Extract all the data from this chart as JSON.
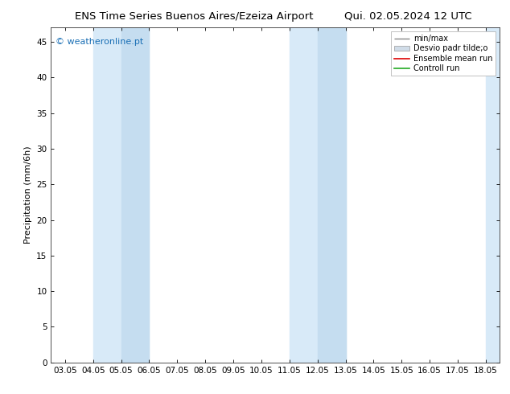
{
  "title_left": "ENS Time Series Buenos Aires/Ezeiza Airport",
  "title_right": "Qui. 02.05.2024 12 UTC",
  "ylabel": "Precipitation (mm/6h)",
  "watermark": "© weatheronline.pt",
  "watermark_color": "#1a6fb5",
  "xlim_dates": [
    "03.05",
    "04.05",
    "05.05",
    "06.05",
    "07.05",
    "08.05",
    "09.05",
    "10.05",
    "11.05",
    "12.05",
    "13.05",
    "14.05",
    "15.05",
    "16.05",
    "17.05",
    "18.05"
  ],
  "ylim": [
    0,
    47
  ],
  "yticks": [
    0,
    5,
    10,
    15,
    20,
    25,
    30,
    35,
    40,
    45
  ],
  "shaded_bands": [
    {
      "xstart": 1.0,
      "xend": 3.0,
      "color": "#d8eaf8"
    },
    {
      "xstart": 2.0,
      "xend": 3.0,
      "color": "#c5ddf0"
    },
    {
      "xstart": 8.0,
      "xend": 10.0,
      "color": "#d8eaf8"
    },
    {
      "xstart": 9.0,
      "xend": 10.0,
      "color": "#c5ddf0"
    },
    {
      "xstart": 15.0,
      "xend": 15.5,
      "color": "#d8eaf8"
    }
  ],
  "legend_labels": [
    "min/max",
    "Desvio padr tilde;o",
    "Ensemble mean run",
    "Controll run"
  ],
  "background_color": "#ffffff",
  "plot_bg_color": "#ffffff",
  "title_fontsize": 9.5,
  "axis_label_fontsize": 8,
  "tick_fontsize": 7.5,
  "legend_fontsize": 7
}
